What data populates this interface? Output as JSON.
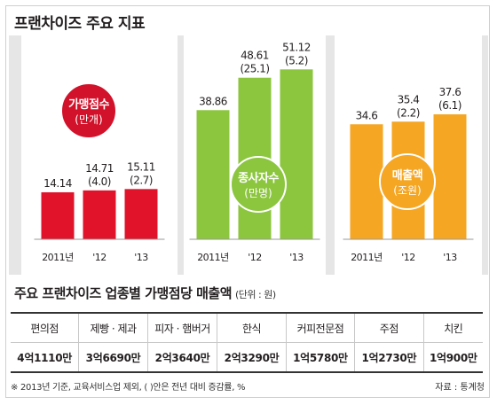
{
  "title": "프랜차이즈 주요 지표",
  "chart_data": [
    {
      "type": "bar",
      "label": "가맹점수",
      "unit": "(만개)",
      "color": "#e0132b",
      "categories": [
        "2011년",
        "'12",
        "'13"
      ],
      "values": [
        14.14,
        14.71,
        15.11
      ],
      "value_labels": [
        "14.14",
        "14.71",
        "15.11"
      ],
      "growth_labels": [
        "",
        "(4.0)",
        "(2.7)"
      ]
    },
    {
      "type": "bar",
      "label": "종사자수",
      "unit": "(만명)",
      "color": "#8cc63f",
      "categories": [
        "2011년",
        "'12",
        "'13"
      ],
      "values": [
        38.86,
        48.61,
        51.12
      ],
      "value_labels": [
        "38.86",
        "48.61",
        "51.12"
      ],
      "growth_labels": [
        "",
        "(25.1)",
        "(5.2)"
      ]
    },
    {
      "type": "bar",
      "label": "매출액",
      "unit": "(조원)",
      "color": "#f5a623",
      "categories": [
        "2011년",
        "'12",
        "'13"
      ],
      "values": [
        34.6,
        35.4,
        37.6
      ],
      "value_labels": [
        "34.6",
        "35.4",
        "37.6"
      ],
      "growth_labels": [
        "",
        "(2.2)",
        "(6.1)"
      ]
    }
  ],
  "sales": {
    "title": "주요 프랜차이즈 업종별 가맹점당 매출액",
    "unit": "(단위 : 원)",
    "headers": [
      "편의점",
      "제빵 · 제과",
      "피자 · 햄버거",
      "한식",
      "커피전문점",
      "주점",
      "치킨"
    ],
    "values": [
      "4억1110만",
      "3억6690만",
      "2억3640만",
      "2억3290만",
      "1억5780만",
      "1억2730만",
      "1억900만"
    ]
  },
  "footnote": "※ 2013년 기준, 교육서비스업 제외, (  )안은 전년 대비 증감률, %",
  "source": "자료 : 통계청"
}
